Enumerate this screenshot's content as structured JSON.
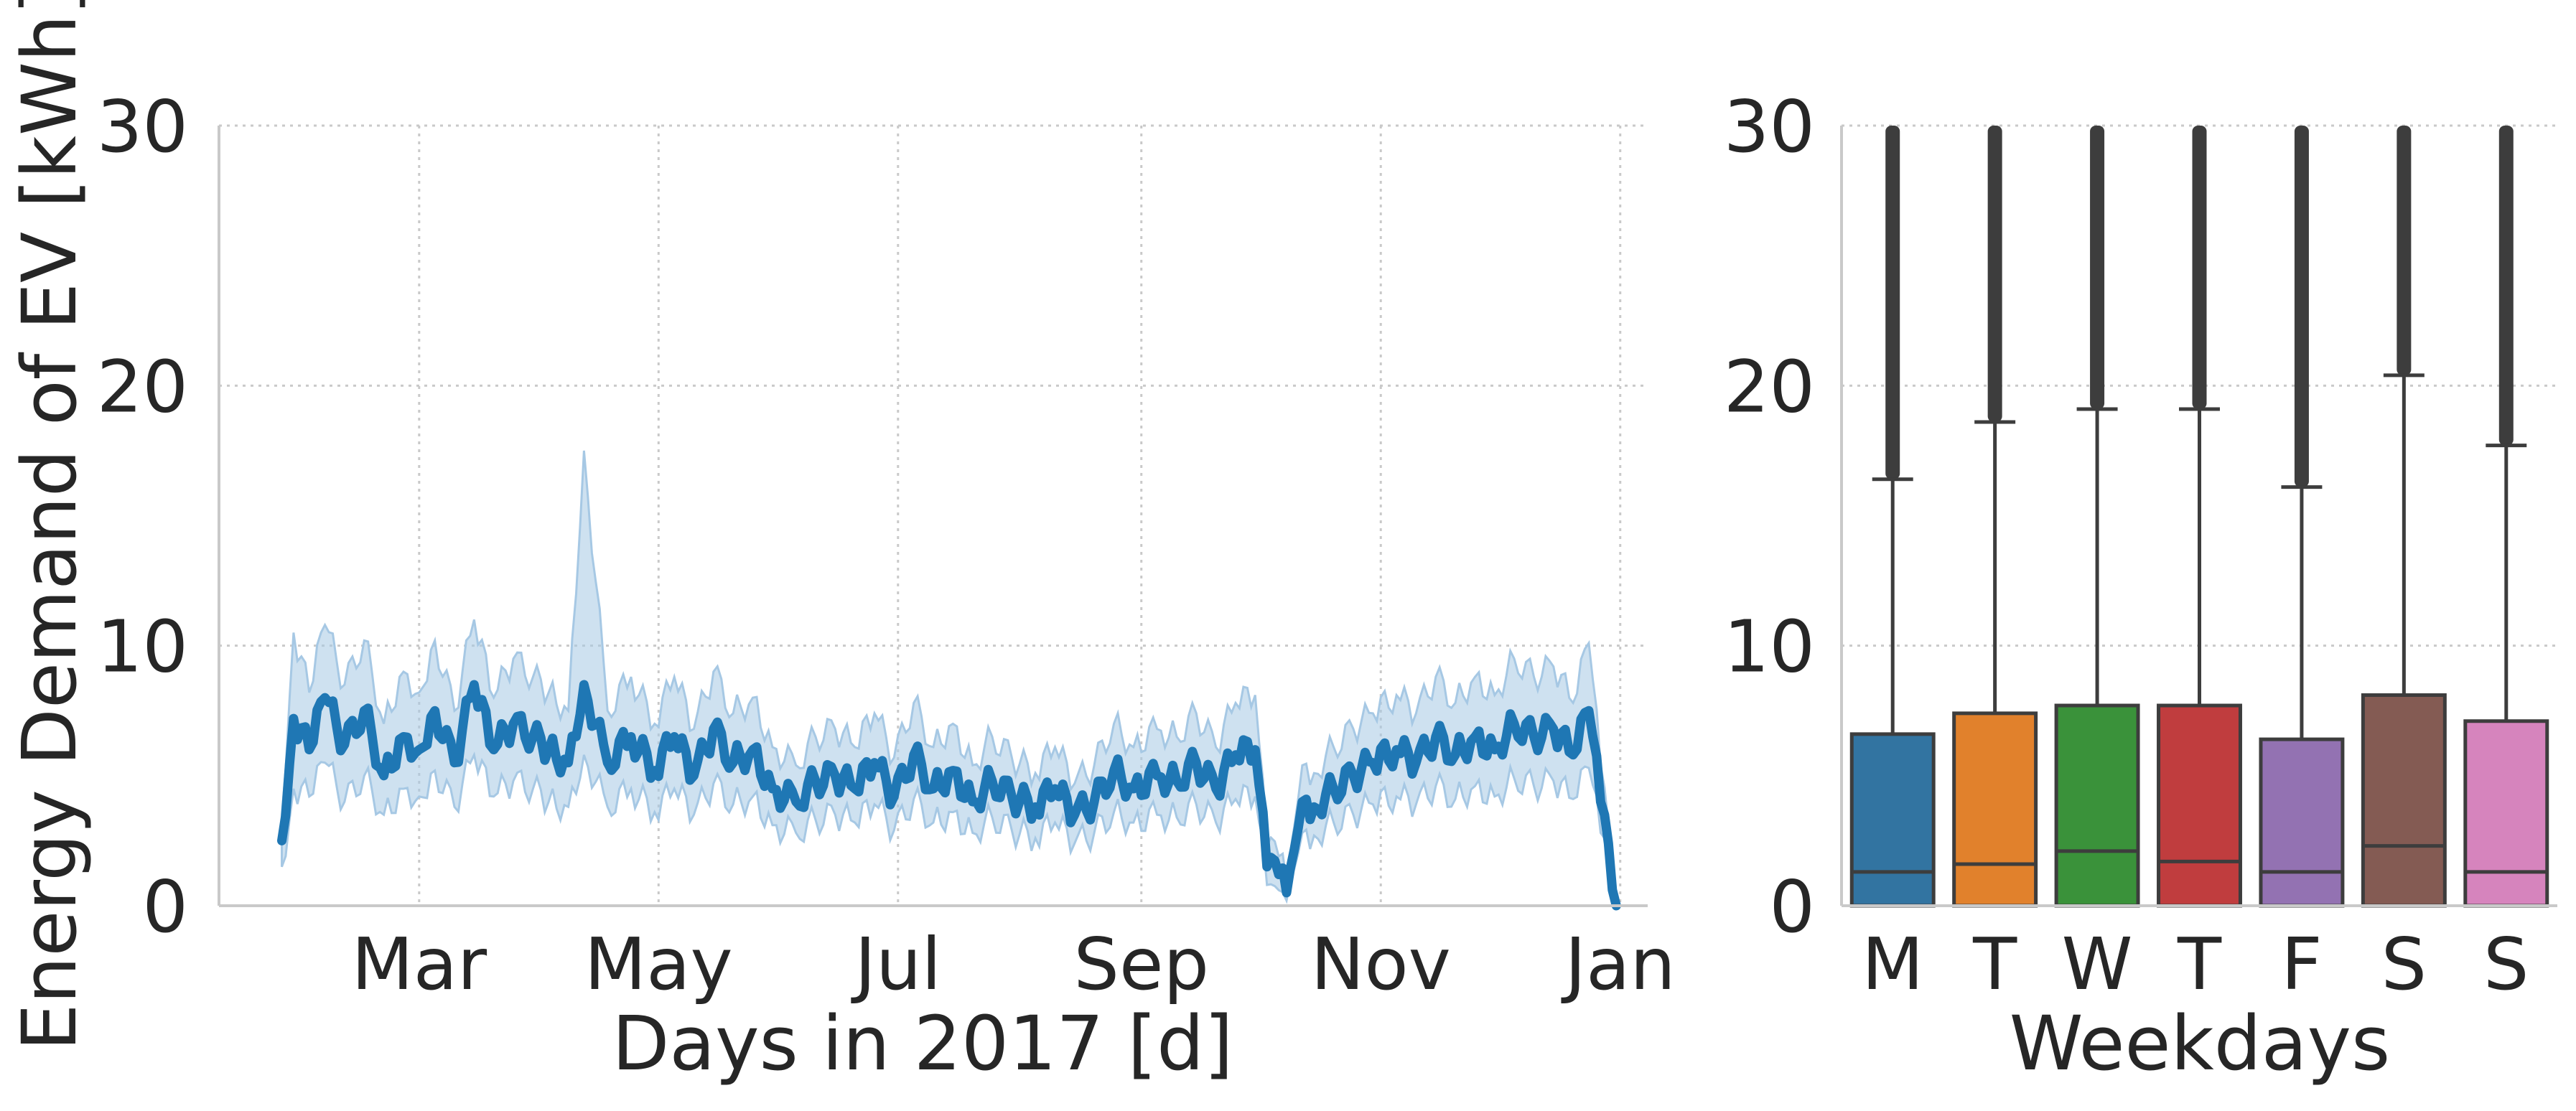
{
  "chart_data": [
    {
      "type": "line",
      "title": "",
      "xlabel": "Days in 2017 [d]",
      "ylabel": "Energy Demand of EV [kWh]",
      "ylim": [
        0,
        30
      ],
      "xlim": [
        "2017-01-09",
        "2018-01-08"
      ],
      "y_ticks": [
        "0",
        "10",
        "20",
        "30"
      ],
      "x_ticks": [
        {
          "date": "2017-03-01",
          "label": "Mar"
        },
        {
          "date": "2017-05-01",
          "label": "May"
        },
        {
          "date": "2017-07-01",
          "label": "Jul"
        },
        {
          "date": "2017-09-01",
          "label": "Sep"
        },
        {
          "date": "2017-11-01",
          "label": "Nov"
        },
        {
          "date": "2018-01-01",
          "label": "Jan"
        }
      ],
      "grid": true,
      "color": "#1f77b4",
      "band_color": "#a6c8e4",
      "series": [
        {
          "x": [
            "2017-01-25",
            "2017-01-28",
            "2017-02-01",
            "2017-02-05",
            "2017-02-10",
            "2017-02-15",
            "2017-02-20",
            "2017-02-25",
            "2017-03-01",
            "2017-03-05",
            "2017-03-10",
            "2017-03-15",
            "2017-03-20",
            "2017-03-25",
            "2017-03-30",
            "2017-04-03",
            "2017-04-08",
            "2017-04-12",
            "2017-04-18",
            "2017-04-24",
            "2017-04-30",
            "2017-05-05",
            "2017-05-10",
            "2017-05-15",
            "2017-05-20",
            "2017-05-25",
            "2017-05-30",
            "2017-06-05",
            "2017-06-10",
            "2017-06-15",
            "2017-06-20",
            "2017-06-25",
            "2017-06-30",
            "2017-07-05",
            "2017-07-10",
            "2017-07-15",
            "2017-07-20",
            "2017-07-25",
            "2017-07-30",
            "2017-08-05",
            "2017-08-10",
            "2017-08-15",
            "2017-08-20",
            "2017-08-25",
            "2017-08-30",
            "2017-09-05",
            "2017-09-10",
            "2017-09-15",
            "2017-09-20",
            "2017-09-25",
            "2017-09-30",
            "2017-10-03",
            "2017-10-06",
            "2017-10-08",
            "2017-10-12",
            "2017-10-15",
            "2017-10-20",
            "2017-10-25",
            "2017-10-30",
            "2017-11-05",
            "2017-11-10",
            "2017-11-15",
            "2017-11-20",
            "2017-11-25",
            "2017-11-30",
            "2017-12-05",
            "2017-12-10",
            "2017-12-15",
            "2017-12-20",
            "2017-12-24",
            "2017-12-27",
            "2017-12-31"
          ],
          "y": [
            2.5,
            7.2,
            6.0,
            8.0,
            6.2,
            7.5,
            5.0,
            6.5,
            6.0,
            7.5,
            5.5,
            8.5,
            6.0,
            7.0,
            6.5,
            6.0,
            5.5,
            8.5,
            5.5,
            6.5,
            5.2,
            6.5,
            5.0,
            6.8,
            5.5,
            6.0,
            4.5,
            4.0,
            4.8,
            5.0,
            4.5,
            5.5,
            4.2,
            5.8,
            4.5,
            5.2,
            4.0,
            4.8,
            4.2,
            3.8,
            4.5,
            3.5,
            4.0,
            5.2,
            4.5,
            5.0,
            4.8,
            5.5,
            4.5,
            5.8,
            6.0,
            1.5,
            1.2,
            0.5,
            4.0,
            3.8,
            4.5,
            5.0,
            5.5,
            6.0,
            5.5,
            6.5,
            5.8,
            6.5,
            6.0,
            7.0,
            6.5,
            6.8,
            5.8,
            7.5,
            4.0,
            0.0
          ],
          "ci_low": [
            1.5,
            4.5,
            4.2,
            5.5,
            4.0,
            5.0,
            3.5,
            4.5,
            4.2,
            5.2,
            3.8,
            5.8,
            4.2,
            4.8,
            4.5,
            4.0,
            3.8,
            5.8,
            3.8,
            4.5,
            3.6,
            4.5,
            3.5,
            4.7,
            3.9,
            4.2,
            3.1,
            2.8,
            3.3,
            3.5,
            3.2,
            3.9,
            2.9,
            4.1,
            3.2,
            3.6,
            2.8,
            3.4,
            2.9,
            2.6,
            3.2,
            2.4,
            2.8,
            3.6,
            3.2,
            3.5,
            3.4,
            3.9,
            3.2,
            4.1,
            4.2,
            0.8,
            0.6,
            0.2,
            2.8,
            2.7,
            3.2,
            3.5,
            3.9,
            4.2,
            3.9,
            4.6,
            4.1,
            4.6,
            4.2,
            4.9,
            4.6,
            4.8,
            4.1,
            5.3,
            2.8,
            0.0
          ],
          "ci_high": [
            3.5,
            10.5,
            8.2,
            10.8,
            8.5,
            10.2,
            7.0,
            9.0,
            8.2,
            10.2,
            7.5,
            11.0,
            8.0,
            9.5,
            8.8,
            8.2,
            7.5,
            17.5,
            7.5,
            8.8,
            7.0,
            8.8,
            6.8,
            9.0,
            7.4,
            8.0,
            6.1,
            5.4,
            6.5,
            6.8,
            6.1,
            7.4,
            5.7,
            7.8,
            6.1,
            7.0,
            5.4,
            6.5,
            5.7,
            5.1,
            6.1,
            4.7,
            5.4,
            7.0,
            6.1,
            6.8,
            6.5,
            7.4,
            6.1,
            7.8,
            8.1,
            2.3,
            1.9,
            0.9,
            5.4,
            5.1,
            6.1,
            6.8,
            7.4,
            8.1,
            7.4,
            8.8,
            7.8,
            8.8,
            8.1,
            9.5,
            8.8,
            9.2,
            7.8,
            10.1,
            5.4,
            0.0
          ]
        }
      ]
    },
    {
      "type": "box",
      "title": "",
      "xlabel": "Weekdays",
      "ylabel": "",
      "ylim": [
        0,
        30
      ],
      "y_ticks": [
        "0",
        "10",
        "20",
        "30"
      ],
      "grid": true,
      "categories": [
        "M",
        "T",
        "W",
        "T",
        "F",
        "S",
        "S"
      ],
      "colors": [
        "#3274a1",
        "#e1812c",
        "#3a923a",
        "#c03d3e",
        "#9372b2",
        "#845b53",
        "#d684bd"
      ],
      "median": [
        1.3,
        1.6,
        2.1,
        1.7,
        1.3,
        2.3,
        1.3
      ],
      "q3": [
        6.6,
        7.4,
        7.7,
        7.7,
        6.4,
        8.1,
        7.1
      ],
      "whisker_high": [
        16.4,
        18.6,
        19.1,
        19.1,
        16.1,
        20.4,
        17.7
      ],
      "outlier_max": [
        30,
        30,
        30,
        30,
        30,
        30,
        30
      ]
    }
  ]
}
